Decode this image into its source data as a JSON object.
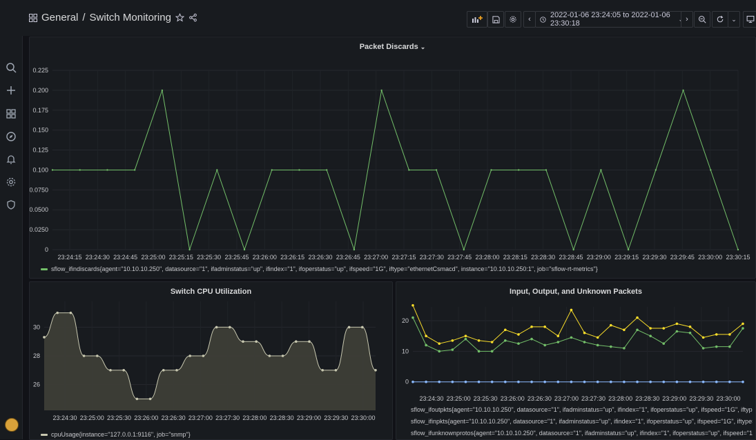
{
  "app": {
    "breadcrumb_folder": "General",
    "breadcrumb_sep": "/",
    "dashboard_title": "Switch Monitoring"
  },
  "toolbar": {
    "time_range": "2022-01-06 23:24:05 to 2022-01-06 23:30:18"
  },
  "sidebar": {
    "icons": [
      "search-icon",
      "plus-icon",
      "dashboards-icon",
      "explore-icon",
      "bell-icon",
      "gear-icon",
      "shield-icon"
    ]
  },
  "colors": {
    "green": "#73bf69",
    "yellow": "#fade2a",
    "blue": "#8ab8ff"
  },
  "panels": {
    "packet_discards": {
      "title": "Packet Discards",
      "legend": "sflow_ifindiscards{agent=\"10.10.10.250\", datasource=\"1\", ifadminstatus=\"up\", ifindex=\"1\", ifoperstatus=\"up\", ifspeed=\"1G\", iftype=\"ethernetCsmacd\", instance=\"10.10.10.250:1\", job=\"sflow-rt-metrics\"}"
    },
    "cpu": {
      "title": "Switch CPU Utilization",
      "legend": "cpuUsage{instance=\"127.0.0.1:9116\", job=\"snmp\"}"
    },
    "io": {
      "title": "Input, Output, and Unknown Packets",
      "legend": [
        "sflow_ifoutpkts{agent=\"10.10.10.250\", datasource=\"1\", ifadminstatus=\"up\", ifindex=\"1\", ifoperstatus=\"up\", ifspeed=\"1G\", iftype=\"ethernetCsmacd\", instan",
        "sflow_ifinpkts{agent=\"10.10.10.250\", datasource=\"1\", ifadminstatus=\"up\", ifindex=\"1\", ifoperstatus=\"up\", ifspeed=\"1G\", iftype=\"ethernetCsmacd\", instanc",
        "sflow_ifunknownprotos{agent=\"10.10.10.250\", datasource=\"1\", ifadminstatus=\"up\", ifindex=\"1\", ifoperstatus=\"up\", ifspeed=\"1G\", iftype=\"ethernetCsmac"
      ]
    }
  },
  "chart_data": [
    {
      "type": "line",
      "title": "Packet Discards",
      "x": [
        "23:24:05",
        "23:24:15",
        "23:24:30",
        "23:24:45",
        "23:25:00",
        "23:25:15",
        "23:25:30",
        "23:25:45",
        "23:26:00",
        "23:26:15",
        "23:26:30",
        "23:26:45",
        "23:27:00",
        "23:27:15",
        "23:27:30",
        "23:27:45",
        "23:28:00",
        "23:28:15",
        "23:28:30",
        "23:28:45",
        "23:29:00",
        "23:29:15",
        "23:29:30",
        "23:29:45",
        "23:30:00",
        "23:30:15"
      ],
      "xticks": [
        "23:24:15",
        "23:24:30",
        "23:24:45",
        "23:25:00",
        "23:25:15",
        "23:25:30",
        "23:25:45",
        "23:26:00",
        "23:26:15",
        "23:26:30",
        "23:26:45",
        "23:27:00",
        "23:27:15",
        "23:27:30",
        "23:27:45",
        "23:28:00",
        "23:28:15",
        "23:28:30",
        "23:28:45",
        "23:29:00",
        "23:29:15",
        "23:29:30",
        "23:29:45",
        "23:30:00",
        "23:30:15"
      ],
      "yticks": [
        "0",
        "0.0250",
        "0.0500",
        "0.0750",
        "0.100",
        "0.125",
        "0.150",
        "0.175",
        "0.200",
        "0.225"
      ],
      "ylim": [
        0,
        0.225
      ],
      "series": [
        {
          "name": "sflow_ifindiscards",
          "color": "#73bf69",
          "values": [
            0.1,
            0.1,
            0.1,
            0.1,
            0.2,
            0,
            0.1,
            0,
            0.1,
            0.1,
            0.1,
            0,
            0.2,
            0.1,
            0.1,
            0,
            0.1,
            0.1,
            0.1,
            0,
            0.1,
            0,
            0.1,
            0.2,
            0.1,
            0
          ]
        }
      ],
      "legend_position": "bottom"
    },
    {
      "type": "area",
      "title": "Switch CPU Utilization",
      "xticks": [
        "23:24:30",
        "23:25:00",
        "23:25:30",
        "23:26:00",
        "23:26:30",
        "23:27:00",
        "23:27:30",
        "23:28:00",
        "23:28:30",
        "23:29:00",
        "23:29:30",
        "23:30:00"
      ],
      "yticks": [
        "26",
        "28",
        "30"
      ],
      "ylim": [
        24.2,
        31.8
      ],
      "series": [
        {
          "name": "cpuUsage",
          "color": "#c8c8b0",
          "values": [
            29.3,
            31,
            31,
            28,
            28,
            27,
            27,
            25,
            25,
            27,
            27,
            28,
            28,
            30,
            30,
            29,
            29,
            28,
            28,
            29,
            29,
            27,
            27,
            30,
            30,
            27
          ]
        }
      ],
      "legend_position": "bottom"
    },
    {
      "type": "line",
      "title": "Input, Output, and Unknown Packets",
      "xticks": [
        "23:24:30",
        "23:25:00",
        "23:25:30",
        "23:26:00",
        "23:26:30",
        "23:27:00",
        "23:27:30",
        "23:28:00",
        "23:28:30",
        "23:29:00",
        "23:29:30",
        "23:30:00"
      ],
      "yticks": [
        "0",
        "10",
        "20"
      ],
      "ylim": [
        -3,
        24.5
      ],
      "series": [
        {
          "name": "sflow_ifoutpkts",
          "color": "#73bf69",
          "values": [
            21,
            12,
            10,
            10.5,
            14,
            10,
            10,
            13.5,
            12.5,
            14,
            12,
            13,
            14.5,
            13,
            12,
            11.5,
            11,
            17,
            15,
            12.5,
            16.5,
            16,
            11,
            11.5,
            11.5,
            17.5
          ]
        },
        {
          "name": "sflow_ifinpkts",
          "color": "#fade2a",
          "values": [
            25,
            15,
            12.5,
            13.5,
            15,
            13.5,
            13,
            17,
            15.5,
            18,
            18,
            15,
            23.5,
            16,
            14.5,
            18.5,
            17,
            21,
            17.5,
            17.5,
            19,
            18,
            14.5,
            15.5,
            15.5,
            19
          ]
        },
        {
          "name": "sflow_ifunknownprotos",
          "color": "#8ab8ff",
          "values": [
            0,
            0,
            0,
            0,
            0,
            0,
            0,
            0,
            0,
            0,
            0,
            0,
            0,
            0,
            0,
            0,
            0,
            0,
            0,
            0,
            0,
            0,
            0,
            0,
            0,
            0
          ]
        }
      ],
      "legend_position": "bottom"
    }
  ]
}
